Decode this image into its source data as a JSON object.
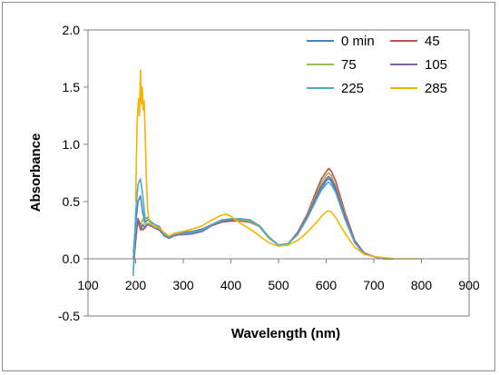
{
  "chart_data": {
    "type": "line",
    "xlabel": "Wavelength  (nm)",
    "ylabel": "Absorbance",
    "xlim": [
      100,
      900
    ],
    "ylim": [
      -0.5,
      2.0
    ],
    "xticks": [
      100,
      200,
      300,
      400,
      500,
      600,
      700,
      800,
      900
    ],
    "yticks": [
      -0.5,
      0.0,
      0.5,
      1.0,
      1.5,
      2.0
    ],
    "ytick_labels": [
      "-0.5",
      "0.0",
      "0.5",
      "1.0",
      "1.5",
      "2.0"
    ],
    "grid": false,
    "legend_position": "top-right",
    "series": [
      {
        "name": "0 min",
        "color": "#4f81bd",
        "x": [
          195,
          200,
          205,
          210,
          215,
          220,
          225,
          230,
          240,
          250,
          260,
          270,
          280,
          290,
          300,
          320,
          340,
          360,
          380,
          400,
          420,
          440,
          460,
          480,
          500,
          520,
          540,
          560,
          580,
          590,
          600,
          605,
          610,
          620,
          640,
          660,
          680,
          700,
          720,
          740
        ],
        "y": [
          0.05,
          0.3,
          0.5,
          0.55,
          0.4,
          0.32,
          0.34,
          0.32,
          0.3,
          0.28,
          0.22,
          0.2,
          0.22,
          0.23,
          0.23,
          0.24,
          0.26,
          0.3,
          0.33,
          0.34,
          0.34,
          0.33,
          0.28,
          0.18,
          0.12,
          0.13,
          0.22,
          0.36,
          0.53,
          0.61,
          0.68,
          0.7,
          0.68,
          0.6,
          0.35,
          0.14,
          0.04,
          0.02,
          0.0,
          0.0
        ]
      },
      {
        "name": "45",
        "color": "#c0504d",
        "x": [
          195,
          200,
          205,
          210,
          215,
          220,
          225,
          230,
          240,
          250,
          260,
          270,
          280,
          290,
          300,
          320,
          340,
          360,
          380,
          400,
          420,
          440,
          460,
          480,
          500,
          520,
          540,
          560,
          580,
          590,
          600,
          605,
          610,
          620,
          640,
          660,
          680,
          700,
          720,
          740
        ],
        "y": [
          0.0,
          0.2,
          0.35,
          0.3,
          0.25,
          0.28,
          0.3,
          0.3,
          0.28,
          0.26,
          0.2,
          0.18,
          0.2,
          0.21,
          0.21,
          0.22,
          0.24,
          0.29,
          0.32,
          0.33,
          0.33,
          0.32,
          0.28,
          0.18,
          0.12,
          0.13,
          0.23,
          0.39,
          0.6,
          0.7,
          0.76,
          0.79,
          0.77,
          0.68,
          0.4,
          0.16,
          0.05,
          0.02,
          0.0,
          0.0
        ]
      },
      {
        "name": "75",
        "color": "#9bbb59",
        "x": [
          195,
          200,
          205,
          210,
          215,
          220,
          225,
          230,
          240,
          250,
          260,
          270,
          280,
          290,
          300,
          320,
          340,
          360,
          380,
          400,
          420,
          440,
          460,
          480,
          500,
          520,
          540,
          560,
          580,
          590,
          600,
          605,
          610,
          620,
          640,
          660,
          680,
          700,
          720,
          740
        ],
        "y": [
          0.02,
          0.25,
          0.3,
          0.28,
          0.35,
          0.3,
          0.31,
          0.3,
          0.28,
          0.26,
          0.21,
          0.19,
          0.21,
          0.22,
          0.22,
          0.23,
          0.25,
          0.3,
          0.33,
          0.34,
          0.34,
          0.33,
          0.28,
          0.18,
          0.12,
          0.13,
          0.22,
          0.38,
          0.57,
          0.67,
          0.73,
          0.75,
          0.73,
          0.64,
          0.38,
          0.15,
          0.05,
          0.02,
          0.0,
          0.0
        ]
      },
      {
        "name": "105",
        "color": "#8064a2",
        "x": [
          195,
          200,
          205,
          210,
          215,
          220,
          225,
          230,
          240,
          250,
          260,
          270,
          280,
          290,
          300,
          320,
          340,
          360,
          380,
          400,
          420,
          440,
          460,
          480,
          500,
          520,
          540,
          560,
          580,
          590,
          600,
          605,
          610,
          620,
          640,
          660,
          680,
          700,
          720,
          740
        ],
        "y": [
          -0.1,
          0.15,
          0.35,
          0.25,
          0.3,
          0.27,
          0.3,
          0.29,
          0.27,
          0.25,
          0.2,
          0.18,
          0.2,
          0.21,
          0.21,
          0.22,
          0.24,
          0.29,
          0.32,
          0.34,
          0.35,
          0.34,
          0.29,
          0.19,
          0.12,
          0.13,
          0.22,
          0.37,
          0.55,
          0.64,
          0.7,
          0.72,
          0.7,
          0.62,
          0.37,
          0.15,
          0.05,
          0.02,
          0.0,
          0.0
        ]
      },
      {
        "name": "225",
        "color": "#4bacc6",
        "x": [
          195,
          200,
          205,
          210,
          215,
          220,
          225,
          230,
          240,
          250,
          260,
          270,
          280,
          290,
          300,
          320,
          340,
          360,
          380,
          400,
          420,
          440,
          460,
          480,
          500,
          520,
          540,
          560,
          580,
          590,
          600,
          605,
          610,
          620,
          640,
          660,
          680,
          700,
          720,
          740
        ],
        "y": [
          -0.15,
          0.4,
          0.65,
          0.7,
          0.55,
          0.35,
          0.36,
          0.33,
          0.3,
          0.27,
          0.21,
          0.19,
          0.21,
          0.22,
          0.22,
          0.23,
          0.25,
          0.3,
          0.34,
          0.35,
          0.35,
          0.34,
          0.29,
          0.19,
          0.12,
          0.13,
          0.21,
          0.35,
          0.52,
          0.6,
          0.65,
          0.67,
          0.65,
          0.58,
          0.34,
          0.14,
          0.04,
          0.02,
          0.0,
          0.0
        ]
      },
      {
        "name": "285",
        "color": "#f4b400",
        "x": [
          200,
          203,
          206,
          208,
          210,
          212,
          214,
          216,
          218,
          220,
          222,
          225,
          228,
          232,
          240,
          250,
          260,
          270,
          280,
          290,
          300,
          320,
          340,
          360,
          380,
          390,
          400,
          420,
          440,
          460,
          480,
          500,
          520,
          540,
          560,
          580,
          590,
          600,
          605,
          610,
          620,
          640,
          660,
          680,
          700,
          720,
          740,
          760,
          780,
          800
        ],
        "y": [
          0.5,
          1.2,
          1.4,
          1.25,
          1.65,
          1.35,
          1.5,
          1.3,
          1.38,
          1.1,
          0.75,
          0.45,
          0.33,
          0.3,
          0.28,
          0.27,
          0.23,
          0.2,
          0.22,
          0.23,
          0.24,
          0.26,
          0.29,
          0.34,
          0.38,
          0.39,
          0.37,
          0.31,
          0.26,
          0.2,
          0.14,
          0.11,
          0.12,
          0.16,
          0.23,
          0.32,
          0.37,
          0.41,
          0.42,
          0.41,
          0.36,
          0.22,
          0.1,
          0.04,
          0.02,
          0.01,
          0.0,
          0.0,
          0.0,
          0.0
        ]
      }
    ]
  }
}
